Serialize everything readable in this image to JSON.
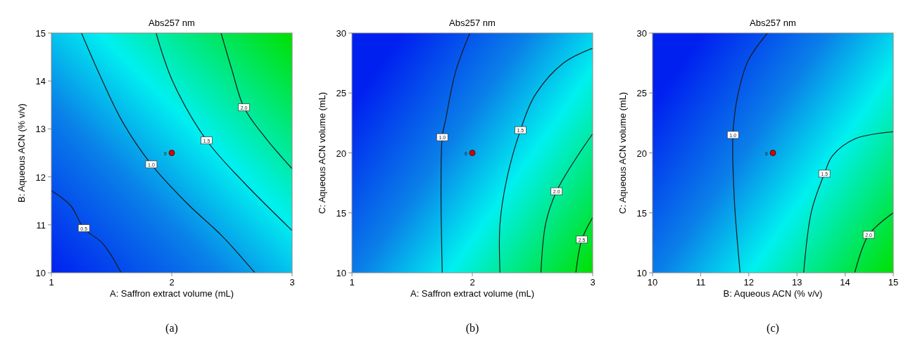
{
  "chart_data": [
    {
      "type": "line",
      "title": "Abs257 nm",
      "xlabel": "A: Saffron extract volume (mL)",
      "ylabel": "B: Aqueous ACN (% v/v)",
      "xlim": [
        1,
        3
      ],
      "xticks": [
        1,
        2,
        3
      ],
      "ylim": [
        10,
        15
      ],
      "yticks": [
        10,
        11,
        12,
        13,
        14,
        15
      ],
      "grid": false,
      "annotations": [
        "(a)"
      ],
      "series": [
        {
          "name": "0.5",
          "color": "#1a1a1a",
          "x": [
            1,
            1.16,
            1.27,
            1.43,
            1.58
          ],
          "values": [
            11.71,
            11.4,
            10.93,
            10.6,
            10
          ]
        },
        {
          "name": "1.0",
          "color": "#1a1a1a",
          "x": [
            1.25,
            1.41,
            1.59,
            1.83,
            2.13,
            2.42,
            2.69
          ],
          "values": [
            15,
            14.08,
            13.15,
            12.26,
            11.44,
            10.76,
            10
          ]
        },
        {
          "name": "1.5",
          "color": "#1a1a1a",
          "x": [
            1.87,
            2.01,
            2.29,
            2.6,
            3
          ],
          "values": [
            15,
            13.98,
            12.76,
            11.88,
            10.88
          ]
        },
        {
          "name": "2.0",
          "color": "#1a1a1a",
          "x": [
            2.41,
            2.5,
            2.6,
            2.78,
            3
          ],
          "values": [
            15,
            14.23,
            13.45,
            12.81,
            12.17
          ]
        },
        {
          "type": "scatter",
          "name": "6",
          "color": "#e00000",
          "x": [
            2
          ],
          "values": [
            12.5
          ]
        }
      ]
    },
    {
      "type": "line",
      "title": "Abs257 nm",
      "xlabel": "A: Saffron extract volume (mL)",
      "ylabel": "C: Aqueous ACN volume (mL)",
      "xlim": [
        1,
        3
      ],
      "xticks": [
        1,
        2,
        3
      ],
      "ylim": [
        10,
        30
      ],
      "yticks": [
        10,
        15,
        20,
        25,
        30
      ],
      "grid": false,
      "annotations": [
        "(b)"
      ],
      "series": [
        {
          "name": "1.0",
          "color": "#1a1a1a",
          "x": [
            1.98,
            1.86,
            1.78,
            1.75,
            1.74,
            1.75
          ],
          "values": [
            30,
            26.74,
            22.86,
            21.31,
            17.04,
            10
          ]
        },
        {
          "name": "1.5",
          "color": "#1a1a1a",
          "x": [
            3,
            2.76,
            2.52,
            2.4,
            2.29,
            2.23,
            2.23
          ],
          "values": [
            28.74,
            27.52,
            24.8,
            21.9,
            18,
            14.1,
            10
          ]
        },
        {
          "name": "2.0",
          "color": "#1a1a1a",
          "x": [
            3,
            2.85,
            2.7,
            2.61,
            2.57
          ],
          "values": [
            21.6,
            19.37,
            16.8,
            14.13,
            10
          ]
        },
        {
          "name": "2.5",
          "color": "#1a1a1a",
          "x": [
            3,
            2.91,
            2.86
          ],
          "values": [
            14.62,
            12.77,
            10
          ]
        },
        {
          "type": "scatter",
          "name": "6",
          "color": "#e00000",
          "x": [
            2
          ],
          "values": [
            20
          ]
        }
      ]
    },
    {
      "type": "line",
      "title": "Abs257 nm",
      "xlabel": "B: Aqueous ACN (% v/v)",
      "ylabel": "C: Aqueous ACN volume (mL)",
      "xlim": [
        10,
        15
      ],
      "xticks": [
        10,
        11,
        12,
        13,
        14,
        15
      ],
      "ylim": [
        10,
        30
      ],
      "yticks": [
        10,
        15,
        20,
        25,
        30
      ],
      "grid": false,
      "annotations": [
        "(c)"
      ],
      "series": [
        {
          "name": "1.0",
          "color": "#1a1a1a",
          "x": [
            12.39,
            11.99,
            11.77,
            11.67,
            11.7,
            11.82
          ],
          "values": [
            30,
            27.73,
            24.8,
            21.5,
            16.07,
            10
          ]
        },
        {
          "name": "1.5",
          "color": "#1a1a1a",
          "x": [
            15,
            14.22,
            13.74,
            13.57,
            13.3,
            13.14
          ],
          "values": [
            21.77,
            21.2,
            19.77,
            18.27,
            15.1,
            10
          ]
        },
        {
          "name": "2.0",
          "color": "#1a1a1a",
          "x": [
            15,
            14.49,
            14.2
          ],
          "values": [
            15,
            13.17,
            10
          ]
        },
        {
          "type": "scatter",
          "name": "6",
          "color": "#e00000",
          "x": [
            12.5
          ],
          "values": [
            20
          ]
        }
      ]
    }
  ]
}
